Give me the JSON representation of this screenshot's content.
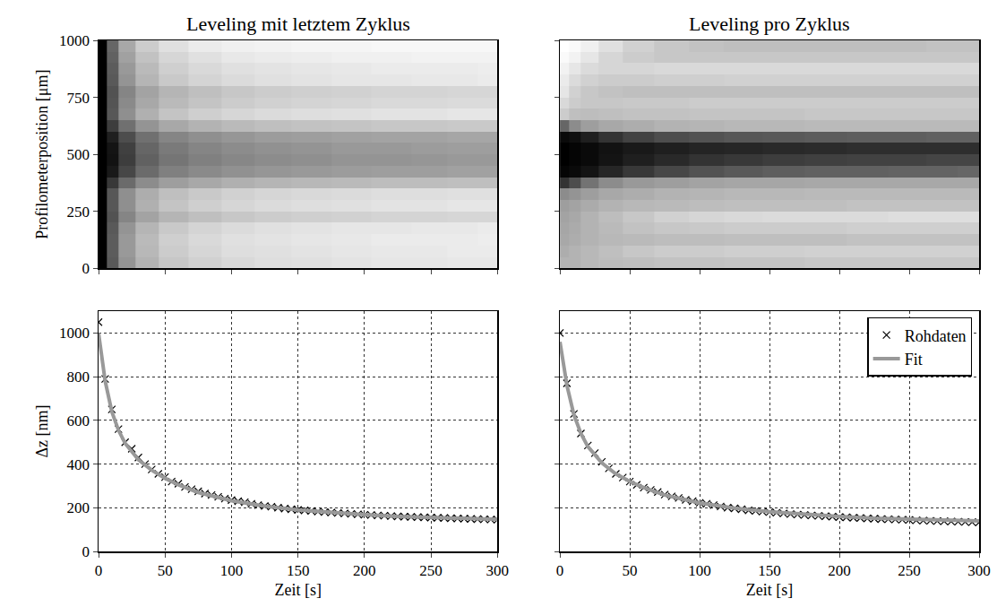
{
  "chart_data": [
    {
      "type": "heatmap",
      "title": "Leveling mit letztem Zyklus",
      "ylabel": "Profilometerposition [μm]",
      "x": [
        3,
        10,
        20,
        35,
        55,
        80,
        105,
        130,
        160,
        190,
        220,
        250,
        275,
        295
      ],
      "y": [
        25,
        75,
        125,
        175,
        225,
        275,
        325,
        375,
        425,
        475,
        525,
        575,
        625,
        675,
        725,
        775,
        825,
        875,
        925,
        975
      ],
      "z": [
        [
          100,
          65,
          42,
          30,
          22,
          18,
          15,
          13,
          12,
          11,
          10,
          10,
          9,
          9
        ],
        [
          100,
          64,
          40,
          28,
          20,
          16,
          13,
          12,
          11,
          10,
          9,
          9,
          8,
          8
        ],
        [
          100,
          64,
          40,
          27,
          19,
          15,
          12,
          11,
          10,
          9,
          8,
          8,
          8,
          7
        ],
        [
          100,
          65,
          42,
          29,
          21,
          17,
          14,
          12,
          11,
          10,
          10,
          9,
          9,
          8
        ],
        [
          100,
          68,
          48,
          36,
          29,
          25,
          22,
          20,
          19,
          18,
          17,
          17,
          16,
          16
        ],
        [
          100,
          66,
          44,
          31,
          23,
          19,
          16,
          14,
          13,
          12,
          11,
          11,
          10,
          10
        ],
        [
          100,
          66,
          44,
          32,
          25,
          21,
          18,
          16,
          15,
          14,
          13,
          13,
          12,
          12
        ],
        [
          100,
          78,
          58,
          45,
          38,
          34,
          31,
          29,
          28,
          27,
          26,
          26,
          25,
          25
        ],
        [
          100,
          90,
          72,
          58,
          50,
          46,
          43,
          41,
          40,
          39,
          38,
          38,
          37,
          37
        ],
        [
          100,
          93,
          76,
          62,
          54,
          50,
          47,
          45,
          44,
          42,
          42,
          41,
          40,
          40
        ],
        [
          100,
          92,
          75,
          60,
          52,
          48,
          45,
          43,
          42,
          40,
          40,
          39,
          38,
          38
        ],
        [
          100,
          88,
          70,
          56,
          48,
          44,
          41,
          39,
          38,
          37,
          36,
          36,
          35,
          35
        ],
        [
          100,
          76,
          56,
          42,
          34,
          30,
          27,
          25,
          24,
          23,
          22,
          22,
          21,
          21
        ],
        [
          100,
          66,
          44,
          31,
          23,
          19,
          16,
          14,
          13,
          12,
          11,
          11,
          10,
          10
        ],
        [
          100,
          67,
          46,
          34,
          27,
          23,
          20,
          18,
          17,
          16,
          15,
          15,
          14,
          14
        ],
        [
          100,
          68,
          48,
          36,
          29,
          25,
          22,
          20,
          19,
          18,
          17,
          17,
          16,
          16
        ],
        [
          100,
          65,
          42,
          29,
          21,
          17,
          14,
          12,
          11,
          10,
          10,
          9,
          9,
          8
        ],
        [
          100,
          64,
          40,
          27,
          19,
          15,
          12,
          11,
          10,
          9,
          8,
          8,
          8,
          7
        ],
        [
          100,
          62,
          37,
          24,
          16,
          12,
          9,
          8,
          7,
          6,
          6,
          5,
          5,
          5
        ],
        [
          100,
          60,
          34,
          20,
          12,
          8,
          6,
          5,
          4,
          4,
          3,
          3,
          3,
          3
        ]
      ],
      "zlim": [
        0,
        100
      ],
      "colors": [
        "#ffffff",
        "#000000"
      ],
      "xlim": [
        0,
        300
      ],
      "xticks": [
        0,
        50,
        100,
        150,
        200,
        250,
        300
      ],
      "ylim": [
        0,
        1000
      ],
      "yticks": [
        0,
        250,
        500,
        750,
        1000
      ],
      "grid": false,
      "tick_labels": "y"
    },
    {
      "type": "heatmap",
      "title": "Leveling pro Zyklus",
      "x": [
        3,
        10,
        20,
        35,
        55,
        80,
        105,
        130,
        160,
        190,
        220,
        250,
        275,
        295
      ],
      "y": [
        25,
        75,
        125,
        175,
        225,
        275,
        325,
        375,
        425,
        475,
        525,
        575,
        625,
        675,
        725,
        775,
        825,
        875,
        925,
        975
      ],
      "z": [
        [
          30,
          30,
          28,
          26,
          25,
          24,
          24,
          23,
          23,
          22,
          22,
          22,
          22,
          22
        ],
        [
          32,
          30,
          28,
          25,
          22,
          20,
          20,
          19,
          19,
          18,
          18,
          18,
          18,
          18
        ],
        [
          34,
          32,
          30,
          28,
          27,
          26,
          26,
          25,
          25,
          25,
          24,
          24,
          24,
          24
        ],
        [
          35,
          33,
          30,
          27,
          24,
          22,
          21,
          20,
          20,
          20,
          19,
          19,
          19,
          19
        ],
        [
          36,
          34,
          30,
          26,
          22,
          18,
          16,
          15,
          14,
          14,
          14,
          13,
          13,
          13
        ],
        [
          38,
          36,
          33,
          30,
          28,
          27,
          26,
          25,
          25,
          25,
          24,
          24,
          24,
          24
        ],
        [
          45,
          42,
          38,
          34,
          32,
          30,
          29,
          28,
          28,
          27,
          27,
          27,
          27,
          27
        ],
        [
          80,
          70,
          55,
          45,
          40,
          38,
          36,
          35,
          35,
          34,
          34,
          34,
          34,
          34
        ],
        [
          98,
          96,
          92,
          85,
          78,
          72,
          68,
          65,
          63,
          62,
          62,
          61,
          61,
          60
        ],
        [
          100,
          98,
          96,
          92,
          88,
          84,
          80,
          78,
          76,
          75,
          74,
          74,
          73,
          73
        ],
        [
          100,
          98,
          96,
          93,
          90,
          88,
          86,
          85,
          84,
          83,
          82,
          82,
          82,
          82
        ],
        [
          96,
          94,
          88,
          80,
          74,
          70,
          68,
          66,
          65,
          64,
          63,
          63,
          62,
          62
        ],
        [
          60,
          45,
          38,
          34,
          32,
          30,
          29,
          28,
          28,
          27,
          27,
          27,
          27,
          27
        ],
        [
          20,
          25,
          26,
          25,
          24,
          24,
          23,
          23,
          23,
          22,
          22,
          22,
          22,
          22
        ],
        [
          15,
          20,
          22,
          22,
          21,
          21,
          20,
          20,
          20,
          20,
          20,
          20,
          20,
          20
        ],
        [
          10,
          18,
          22,
          24,
          25,
          25,
          25,
          25,
          25,
          25,
          25,
          25,
          25,
          25
        ],
        [
          8,
          14,
          18,
          20,
          20,
          19,
          19,
          18,
          18,
          18,
          18,
          18,
          18,
          18
        ],
        [
          5,
          10,
          14,
          16,
          16,
          15,
          15,
          15,
          15,
          15,
          15,
          15,
          15,
          15
        ],
        [
          2,
          5,
          10,
          16,
          20,
          22,
          22,
          22,
          22,
          22,
          22,
          22,
          22,
          22
        ],
        [
          0,
          2,
          6,
          12,
          18,
          22,
          24,
          25,
          25,
          25,
          25,
          25,
          24,
          24
        ]
      ],
      "zlim": [
        0,
        100
      ],
      "colors": [
        "#ffffff",
        "#000000"
      ],
      "xlim": [
        0,
        300
      ],
      "xticks": [
        0,
        50,
        100,
        150,
        200,
        250,
        300
      ],
      "ylim": [
        0,
        1000
      ],
      "yticks": [
        0,
        250,
        500,
        750,
        1000
      ],
      "grid": false,
      "tick_labels": false
    },
    {
      "type": "line",
      "xlabel": "Zeit [s]",
      "ylabel": "Δz [nm]",
      "xlim": [
        0,
        300
      ],
      "xticks": [
        0,
        50,
        100,
        150,
        200,
        250,
        300
      ],
      "ylim": [
        0,
        1100
      ],
      "yticks": [
        0,
        200,
        400,
        600,
        800,
        1000
      ],
      "grid": true,
      "tick_labels": true,
      "series": [
        {
          "name": "Rohdaten",
          "type": "scatter",
          "marker": "x",
          "color": "#000000",
          "x": [
            0,
            5,
            10,
            15,
            20,
            25,
            30,
            35,
            40,
            45,
            50,
            55,
            60,
            65,
            70,
            75,
            80,
            85,
            90,
            95,
            100,
            105,
            110,
            115,
            120,
            125,
            130,
            135,
            140,
            145,
            150,
            155,
            160,
            165,
            170,
            175,
            180,
            185,
            190,
            195,
            200,
            205,
            210,
            215,
            220,
            225,
            230,
            235,
            240,
            245,
            250,
            255,
            260,
            265,
            270,
            275,
            280,
            285,
            290,
            295,
            300
          ],
          "values": [
            1050,
            790,
            650,
            560,
            500,
            470,
            430,
            400,
            375,
            355,
            340,
            320,
            310,
            295,
            285,
            275,
            265,
            258,
            250,
            242,
            235,
            230,
            225,
            218,
            212,
            208,
            205,
            200,
            196,
            193,
            190,
            188,
            185,
            182,
            180,
            178,
            176,
            174,
            172,
            170,
            168,
            167,
            165,
            164,
            162,
            160,
            159,
            158,
            157,
            156,
            155,
            154,
            153,
            152,
            151,
            150,
            149,
            148,
            147,
            146,
            145
          ]
        },
        {
          "name": "Fit",
          "type": "line",
          "line_style": "solid",
          "color": "#999999",
          "x": [
            0,
            2,
            5,
            10,
            15,
            20,
            30,
            40,
            50,
            60,
            75,
            100,
            125,
            150,
            175,
            200,
            225,
            250,
            275,
            300
          ],
          "values": [
            1000,
            900,
            780,
            640,
            555,
            495,
            420,
            372,
            335,
            305,
            270,
            232,
            207,
            190,
            178,
            168,
            160,
            155,
            150,
            147
          ]
        }
      ]
    },
    {
      "type": "line",
      "xlabel": "Zeit [s]",
      "xlim": [
        0,
        300
      ],
      "xticks": [
        0,
        50,
        100,
        150,
        200,
        250,
        300
      ],
      "ylim": [
        0,
        1100
      ],
      "yticks": [
        0,
        200,
        400,
        600,
        800,
        1000
      ],
      "grid": true,
      "tick_labels": "x",
      "legend": "top right",
      "series": [
        {
          "name": "Rohdaten",
          "type": "scatter",
          "marker": "x",
          "color": "#000000",
          "x": [
            0,
            5,
            10,
            15,
            20,
            25,
            30,
            35,
            40,
            45,
            50,
            55,
            60,
            65,
            70,
            75,
            80,
            85,
            90,
            95,
            100,
            105,
            110,
            115,
            120,
            125,
            130,
            135,
            140,
            145,
            150,
            155,
            160,
            165,
            170,
            175,
            180,
            185,
            190,
            195,
            200,
            205,
            210,
            215,
            220,
            225,
            230,
            235,
            240,
            245,
            250,
            255,
            260,
            265,
            270,
            275,
            280,
            285,
            290,
            295,
            300
          ],
          "values": [
            1000,
            770,
            630,
            540,
            485,
            450,
            410,
            380,
            355,
            338,
            320,
            305,
            292,
            282,
            272,
            260,
            252,
            245,
            236,
            230,
            222,
            218,
            212,
            206,
            200,
            197,
            193,
            188,
            185,
            182,
            180,
            177,
            174,
            171,
            169,
            167,
            165,
            163,
            161,
            159,
            157,
            156,
            154,
            153,
            151,
            150,
            148,
            147,
            146,
            145,
            144,
            142,
            141,
            140,
            139,
            138,
            137,
            136,
            135,
            134,
            133
          ]
        },
        {
          "name": "Fit",
          "type": "line",
          "line_style": "solid",
          "color": "#999999",
          "x": [
            0,
            2,
            5,
            10,
            15,
            20,
            30,
            40,
            50,
            60,
            75,
            100,
            125,
            150,
            175,
            200,
            225,
            250,
            275,
            300
          ],
          "values": [
            960,
            870,
            760,
            625,
            540,
            480,
            405,
            355,
            320,
            292,
            258,
            222,
            198,
            182,
            170,
            160,
            152,
            147,
            143,
            140
          ]
        }
      ]
    }
  ]
}
